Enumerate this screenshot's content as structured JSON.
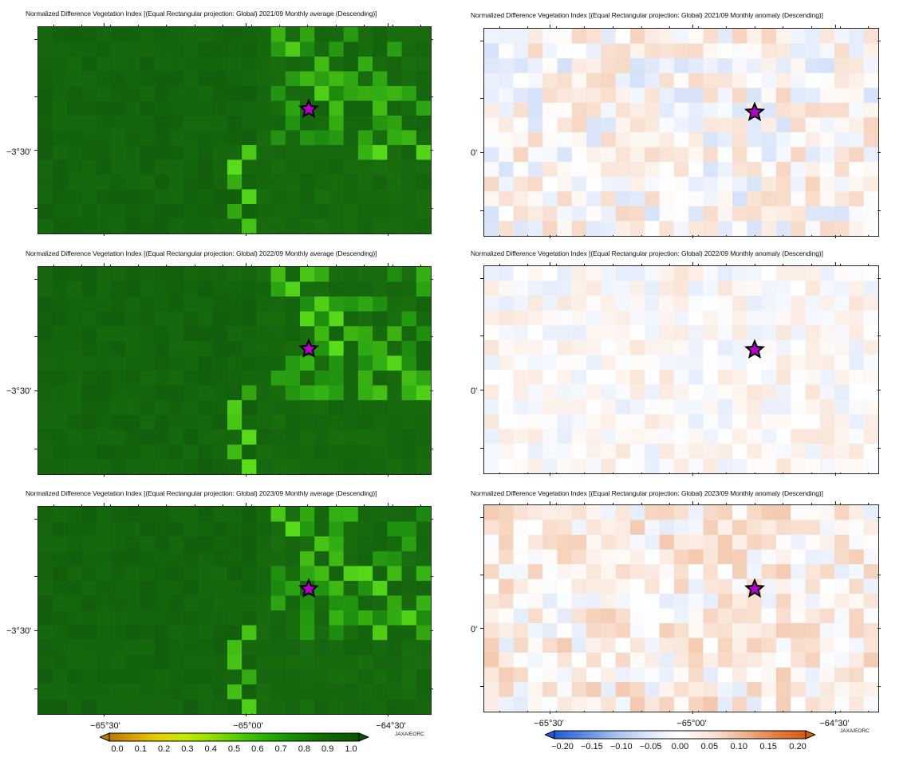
{
  "panels": [
    {
      "title": "Normalized Difference Vegetation Index [(Equal Rectangular projection: Global) 2021/09 Monthly average (Descending)]",
      "kind": "ndvi",
      "seed": 11
    },
    {
      "title": "Normalized Difference Vegetation Index [(Equal Rectangular projection: Global) 2021/09 Monthly anomaly (Descending)]",
      "kind": "anomaly",
      "seed": 21
    },
    {
      "title": "Normalized Difference Vegetation Index [(Equal Rectangular projection: Global) 2022/09 Monthly average (Descending)]",
      "kind": "ndvi",
      "seed": 12
    },
    {
      "title": "Normalized Difference Vegetation Index [(Equal Rectangular projection: Global) 2022/09 Monthly anomaly (Descending)]",
      "kind": "anomaly",
      "seed": 22
    },
    {
      "title": "Normalized Difference Vegetation Index [(Equal Rectangular projection: Global) 2023/09 Monthly average (Descending)]",
      "kind": "ndvi",
      "seed": 13
    },
    {
      "title": "Normalized Difference Vegetation Index [(Equal Rectangular projection: Global) 2023/09 Monthly anomaly (Descending)]",
      "kind": "anomaly",
      "seed": 23
    }
  ],
  "axes": {
    "y_label_left": "−3°30'",
    "y_label_right": "0'",
    "x_labels": [
      "−65°30'",
      "−65°00'",
      "−64°30'"
    ]
  },
  "credit": "JAXA/EORC",
  "colorbars": {
    "ndvi": {
      "ticks": [
        "0.0",
        "0.1",
        "0.2",
        "0.3",
        "0.4",
        "0.5",
        "0.6",
        "0.7",
        "0.8",
        "0.9",
        "1.0"
      ],
      "colors": [
        "#b87800",
        "#d9a400",
        "#e8d000",
        "#c8e800",
        "#98e000",
        "#5cd000",
        "#2eb800",
        "#1a9a00",
        "#127c00",
        "#0c6400",
        "#0a5400"
      ]
    },
    "anomaly": {
      "ticks": [
        "−0.20",
        "−0.15",
        "−0.10",
        "−0.05",
        "0.00",
        "0.05",
        "0.10",
        "0.15",
        "0.20"
      ],
      "colors": [
        "#1f5bd6",
        "#5f8ee6",
        "#a8c2f0",
        "#dde8fb",
        "#ffffff",
        "#fbe3d6",
        "#f2b592",
        "#e57f45",
        "#d65a12"
      ]
    }
  },
  "colors": {
    "star_fill": "#b400c8",
    "star_stroke": "#000000"
  }
}
